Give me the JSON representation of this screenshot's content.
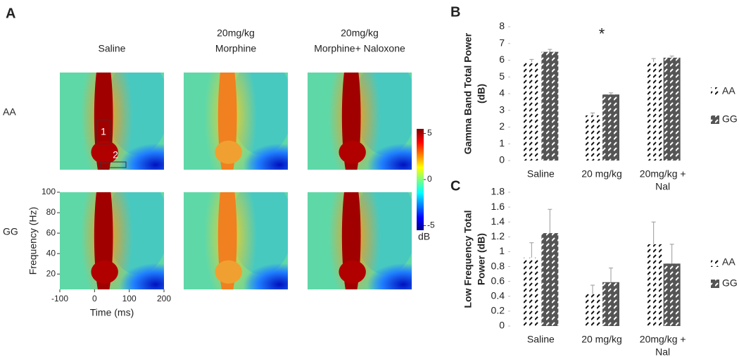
{
  "chart_data": [
    {
      "type": "heatmap",
      "panel_label": "A",
      "column_titles": [
        [
          "Saline"
        ],
        [
          "20mg/kg",
          "Morphine"
        ],
        [
          "20mg/kg",
          "Morphine+ Naloxone"
        ]
      ],
      "row_labels": [
        "AA",
        "GG"
      ],
      "xlabel": "Time (ms)",
      "ylabel": "Frequency (Hz)",
      "xlim": [
        -100,
        200
      ],
      "xticks": [
        -100,
        0,
        100,
        200
      ],
      "ylim": [
        5,
        100
      ],
      "yticks": [
        20,
        40,
        60,
        80,
        100
      ],
      "colormap": "jet",
      "clim": [
        -5.5,
        5.5
      ],
      "cticks": [
        5,
        0,
        -5
      ],
      "clabel": "dB",
      "annotations": [
        "1",
        "2"
      ]
    },
    {
      "type": "bar",
      "panel_label": "B",
      "ylabel": [
        "Gamma Band Total Power",
        "(dB)"
      ],
      "categories": [
        [
          "Saline"
        ],
        [
          "20 mg/kg"
        ],
        [
          "20mg/kg +",
          "Nal"
        ]
      ],
      "ylim": [
        0,
        8
      ],
      "yticks": [
        0,
        1,
        2,
        3,
        4,
        5,
        6,
        7,
        8
      ],
      "series": [
        {
          "name": "AA",
          "color": "#ffffff",
          "values": [
            5.9,
            2.7,
            5.9
          ],
          "errors": [
            0.15,
            0.15,
            0.2
          ]
        },
        {
          "name": "GG",
          "color": "#555555",
          "values": [
            6.5,
            3.95,
            6.15
          ],
          "errors": [
            0.15,
            0.1,
            0.1
          ]
        }
      ],
      "annotation": {
        "text": "*",
        "category": 1,
        "y": 7.5
      }
    },
    {
      "type": "bar",
      "panel_label": "C",
      "ylabel": [
        "Low Frequency Total",
        "Power (dB)"
      ],
      "categories": [
        [
          "Saline"
        ],
        [
          "20 mg/kg"
        ],
        [
          "20mg/kg +",
          "Nal"
        ]
      ],
      "ylim": [
        0,
        1.8
      ],
      "yticks": [
        0,
        0.2,
        0.4,
        0.6,
        0.8,
        1,
        1.2,
        1.4,
        1.6,
        1.8
      ],
      "series": [
        {
          "name": "AA",
          "color": "#ffffff",
          "values": [
            0.92,
            0.43,
            1.1
          ],
          "errors": [
            0.2,
            0.12,
            0.3
          ]
        },
        {
          "name": "GG",
          "color": "#555555",
          "values": [
            1.25,
            0.59,
            0.84
          ],
          "errors": [
            0.32,
            0.19,
            0.26
          ]
        }
      ]
    }
  ]
}
